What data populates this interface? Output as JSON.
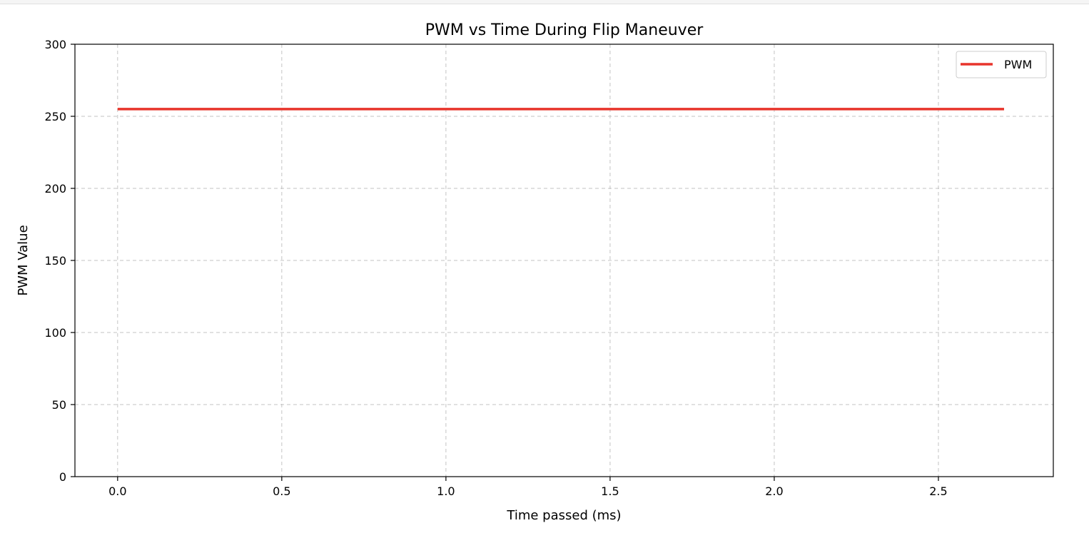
{
  "chart_data": {
    "type": "line",
    "title": "PWM vs Time During Flip Maneuver",
    "xlabel": "Time passed (ms)",
    "ylabel": "PWM Value",
    "xlim": [
      -0.13,
      2.85
    ],
    "ylim": [
      0,
      300
    ],
    "xticks": [
      0.0,
      0.5,
      1.0,
      1.5,
      2.0,
      2.5
    ],
    "xtick_labels": [
      "0.0",
      "0.5",
      "1.0",
      "1.5",
      "2.0",
      "2.5"
    ],
    "yticks": [
      0,
      50,
      100,
      150,
      200,
      250,
      300
    ],
    "ytick_labels": [
      "0",
      "50",
      "100",
      "150",
      "200",
      "250",
      "300"
    ],
    "grid": true,
    "legend_position": "top-right",
    "series": [
      {
        "name": "PWM",
        "color": "#e8342b",
        "x": [
          0.0,
          2.7
        ],
        "y": [
          255,
          255
        ]
      }
    ]
  }
}
